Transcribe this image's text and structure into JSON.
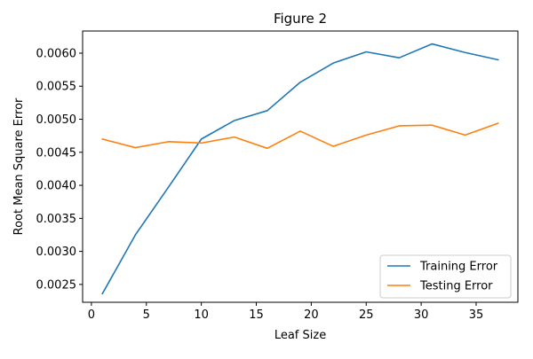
{
  "chart_data": {
    "type": "line",
    "title": "Figure 2",
    "xlabel": "Leaf Size",
    "ylabel": "Root Mean Square Error",
    "xlim": [
      -0.8,
      38.8
    ],
    "ylim": [
      0.00223,
      0.006335
    ],
    "xticks": [
      0,
      5,
      10,
      15,
      20,
      25,
      30,
      35
    ],
    "yticks": [
      0.0025,
      0.003,
      0.0035,
      0.004,
      0.0045,
      0.005,
      0.0055,
      0.006
    ],
    "ytick_decimals": 4,
    "grid": false,
    "legend_position": "lower-right",
    "x": [
      1,
      4,
      7,
      10,
      13,
      16,
      19,
      22,
      25,
      28,
      31,
      34,
      37
    ],
    "series": [
      {
        "name": "Training Error",
        "color": "#1f77b4",
        "values": [
          0.00236,
          0.00325,
          0.00397,
          0.0047,
          0.00498,
          0.00513,
          0.00556,
          0.00585,
          0.00602,
          0.00593,
          0.00614,
          0.00601,
          0.0059
        ]
      },
      {
        "name": "Testing Error",
        "color": "#ff7f0e",
        "values": [
          0.0047,
          0.00457,
          0.00466,
          0.00464,
          0.00473,
          0.00456,
          0.00482,
          0.00459,
          0.00476,
          0.0049,
          0.00491,
          0.00476,
          0.00494
        ]
      }
    ]
  }
}
